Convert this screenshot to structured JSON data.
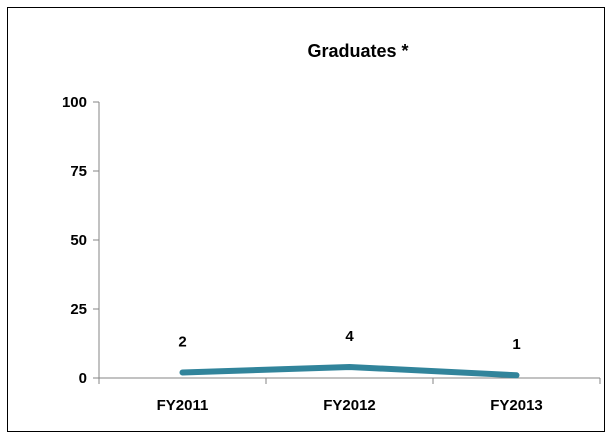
{
  "chart_data": {
    "type": "line",
    "title": "Graduates *",
    "categories": [
      "FY2011",
      "FY2012",
      "FY2013"
    ],
    "series": [
      {
        "values": [
          2,
          4,
          1
        ],
        "color": "#31849B",
        "data_labels": [
          "2",
          "4",
          "1"
        ]
      }
    ],
    "xlabel": "",
    "ylabel": "",
    "ylim": [
      0,
      100
    ],
    "yticks": [
      0,
      25,
      50,
      75,
      100
    ],
    "ytick_labels": [
      "0",
      "25",
      "50",
      "75",
      "100"
    ],
    "grid": false,
    "legend": "none"
  }
}
